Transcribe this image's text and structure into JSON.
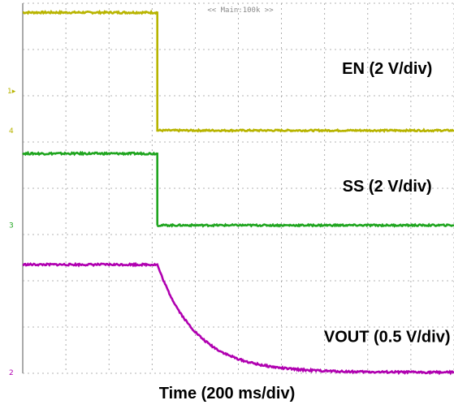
{
  "chart_data": {
    "type": "line",
    "header_text": "<< Main:100k >>",
    "xlabel": "Time (200 ms/div)",
    "x_divisions": 10,
    "y_divisions": 8,
    "event_time_div": 3.12,
    "grid": true,
    "series": [
      {
        "name": "EN (2 V/div)",
        "color": "#b8b400",
        "marker_glyph": "4",
        "high_div": 7.8,
        "low_div": 5.25,
        "transition": "step",
        "label_div_y": 6.6
      },
      {
        "name": "SS (2 V/div)",
        "color": "#1fa51f",
        "marker_glyph": "3",
        "high_div": 4.75,
        "low_div": 3.2,
        "transition": "step",
        "label_div_y": 4.05
      },
      {
        "name": "VOUT (0.5 V/div)",
        "color": "#b000b0",
        "marker_glyph": "2",
        "high_div": 2.35,
        "low_div": 0.02,
        "transition": "exponential-decay",
        "decay_tau_div": 0.9,
        "label_div_y": 0.8
      }
    ]
  }
}
